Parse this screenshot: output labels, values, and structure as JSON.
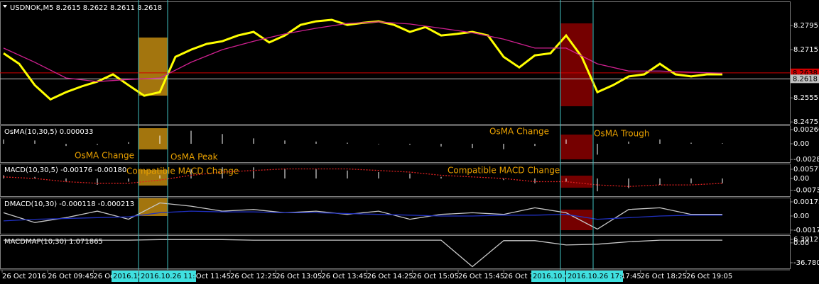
{
  "panes": [
    {
      "label": "USDNOK,M5  8.2615 8.2622 8.2611 8.2618",
      "ylim": [
        8.2466,
        8.2875
      ],
      "yticks": [
        8.2795,
        8.2715,
        8.2555,
        8.2475
      ],
      "markers": [
        {
          "value": 8.2638,
          "color": "#d00000"
        },
        {
          "value": 8.2618,
          "color": "#c0c0c0"
        }
      ],
      "series": [
        {
          "kind": "line",
          "color": "#ffff00",
          "values": [
            8.2703,
            8.2668,
            8.2597,
            8.255,
            8.2574,
            8.2593,
            8.2609,
            8.2633,
            8.2597,
            8.2562,
            8.2574,
            8.2691,
            8.2715,
            8.2734,
            8.2743,
            8.2762,
            8.2774,
            8.2739,
            8.2762,
            8.2797,
            8.2809,
            8.2814,
            8.2797,
            8.2804,
            8.2809,
            8.2797,
            8.2774,
            8.279,
            8.2762,
            8.2767,
            8.2774,
            8.2762,
            8.2691,
            8.2656,
            8.2696,
            8.2703,
            8.2762,
            8.2691,
            8.2574,
            8.2597,
            8.2626,
            8.2633,
            8.2668,
            8.2633,
            8.2626,
            8.2633,
            8.2633
          ]
        },
        {
          "kind": "line",
          "color": "#d02090",
          "values": [
            8.272,
            8.2673,
            8.2621,
            8.2609,
            8.2616,
            8.2621,
            8.2673,
            8.2715,
            8.2743,
            8.2767,
            8.2786,
            8.2802,
            8.2807,
            8.28,
            8.2786,
            8.2771,
            8.275,
            8.272,
            8.272,
            8.2668,
            8.2644,
            8.2644,
            8.264,
            8.2637
          ]
        }
      ]
    },
    {
      "label": "OsMA(10,30,5) 0.000033",
      "ylim": [
        -0.00352,
        0.00339
      ],
      "yticks": [
        0.002609,
        {
          "value": 0,
          "label": "0.00"
        },
        -0.00289
      ],
      "series": [
        {
          "kind": "hist",
          "color": "#ffffff",
          "values": [
            0.0008,
            0.0006,
            -0.0004,
            -0.0002,
            0.0003,
            0.0015,
            0.0024,
            0.0018,
            0.001,
            0.0006,
            0.0004,
            0.0002,
            -0.0001,
            -0.0002,
            -0.0005,
            -0.0008,
            -0.001,
            -0.0004,
            0.0008,
            -0.002,
            0.0004,
            0.0008,
            0.0002,
            0.0001
          ]
        }
      ]
    },
    {
      "label": "MACD(10,30,5) -0.00176 -0.00180",
      "ylim": [
        -0.0115,
        0.0093
      ],
      "yticks": [
        0.00577,
        {
          "value": 0,
          "label": "0.00"
        },
        -0.0073
      ],
      "series": [
        {
          "kind": "hist",
          "color": "#ffffff",
          "values": [
            0.002,
            0.001,
            -0.002,
            -0.004,
            -0.002,
            0.002,
            0.006,
            0.007,
            0.007,
            0.006,
            0.006,
            0.005,
            0.004,
            0.003,
            0.001,
            0,
            -0.001,
            -0.003,
            -0.002,
            -0.008,
            -0.006,
            -0.004,
            -0.003,
            -0.003
          ]
        },
        {
          "kind": "dotted",
          "color": "#e02020",
          "values": [
            0.001,
            0,
            -0.002,
            -0.003,
            -0.003,
            -0.001,
            0.002,
            0.004,
            0.005,
            0.006,
            0.006,
            0.006,
            0.005,
            0.004,
            0.002,
            0.001,
            0,
            -0.002,
            -0.002,
            -0.004,
            -0.005,
            -0.004,
            -0.004,
            -0.003
          ]
        }
      ]
    },
    {
      "label": "DMACD(10,30) -0.000118 -0.000213",
      "ylim": [
        -0.00225,
        0.00225
      ],
      "yticks": [
        0.001734,
        {
          "value": 0,
          "label": "0.00"
        },
        -0.00172
      ],
      "series": [
        {
          "kind": "line",
          "color": "#c8c8c8",
          "values": [
            0.0004,
            -0.0008,
            -0.0002,
            0.0006,
            -0.0004,
            0.0016,
            0.0012,
            0.0006,
            0.0008,
            0.0004,
            0.0006,
            0.0002,
            0.0006,
            -0.0004,
            0.0002,
            0.0004,
            0.0002,
            0.001,
            0.0004,
            -0.0016,
            0.0008,
            0.001,
            0.0002,
            0.0002
          ]
        },
        {
          "kind": "line",
          "color": "#2030c0",
          "values": [
            -0.0006,
            -0.0004,
            -0.0003,
            -0.0002,
            -0.0001,
            0.0004,
            0.0006,
            0.0005,
            0.0005,
            0.0004,
            0.0004,
            0.0003,
            0.0002,
            0.0001,
            0,
            0,
            0.0001,
            0.0001,
            0.0002,
            -0.0004,
            -0.0002,
            0,
            0.0001,
            0.0001
          ]
        }
      ]
    },
    {
      "label": "MACDMAP(10,30) 1.071865",
      "ylim": [
        -48.55,
        14.24
      ],
      "yticks": [
        6.3912,
        {
          "value": 0,
          "label": "0.00"
        },
        -36.7808
      ],
      "series": [
        {
          "kind": "line",
          "color": "#c8c8c8",
          "values": [
            5,
            5,
            5,
            5,
            5,
            6,
            6,
            6,
            5,
            5,
            5,
            5,
            5,
            5,
            5,
            -44,
            4,
            4,
            -4,
            -2.5,
            2,
            5,
            5,
            5
          ]
        }
      ]
    }
  ],
  "time_labels": [
    "26 Oct 2016",
    "26 Oct 09:45",
    "26 Oct 10:25",
    "26 Oct 11:05",
    "26 Oct 11:45",
    "26 Oct 12:25",
    "26 Oct 13:05",
    "26 Oct 13:45",
    "26 Oct 14:25",
    "26 Oct 15:05",
    "26 Oct 15:45",
    "26 Oct 16:25",
    "26 Oct 17:05",
    "26 Oct 17:45",
    "26 Oct 18:25",
    "26 Oct 19:05"
  ],
  "cursor_labels": [
    "2016.10.",
    "2016.10.26 11:30",
    "2016.10.2",
    "2016.10.26 17:45"
  ],
  "annotations": [
    "OsMA Change",
    "OsMA Peak",
    "Compatible MACD Change",
    "OsMA Change",
    "OsMA Trough",
    "Compatible MACD Change"
  ]
}
